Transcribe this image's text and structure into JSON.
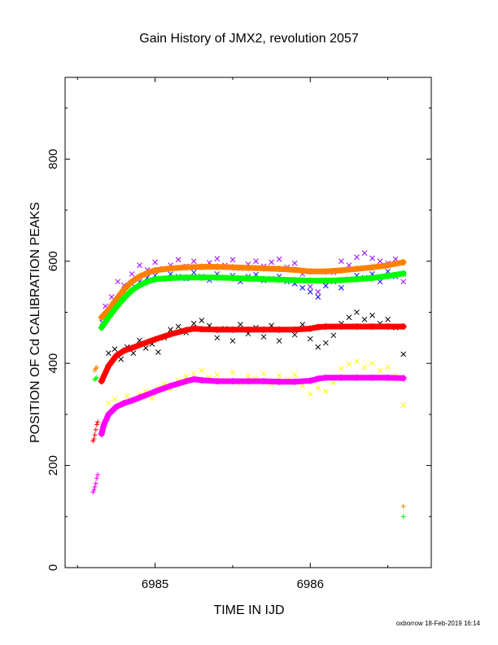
{
  "chart_data": {
    "type": "scatter",
    "title": "Gain History of JMX2, revolution 2057",
    "xlabel": "TIME IN IJD",
    "ylabel": "POSITION OF Cd CALIBRATION PEAKS",
    "xlim": [
      6984.42,
      6986.78
    ],
    "ylim": [
      0,
      960
    ],
    "xticks": [
      6985,
      6986
    ],
    "yticks": [
      0,
      200,
      400,
      600,
      800
    ],
    "grid": false,
    "legend": "none",
    "footer": "oxborrow 18-Feb-2019 16:14",
    "series": [
      {
        "color": "#ff8000",
        "marker": "+",
        "style": "smooth",
        "x": [
          6984.655,
          6984.7,
          6984.75,
          6984.8,
          6984.85,
          6984.9,
          6984.95,
          6985.0,
          6985.1,
          6985.2,
          6985.3,
          6985.4,
          6985.5,
          6985.6,
          6985.7,
          6985.8,
          6985.9,
          6986.0,
          6986.1,
          6986.2,
          6986.3,
          6986.4,
          6986.5,
          6986.6
        ],
        "values": [
          490,
          505,
          525,
          545,
          560,
          570,
          577,
          582,
          586,
          588,
          589,
          589,
          588,
          587,
          586,
          585,
          583,
          580,
          580,
          582,
          585,
          588,
          592,
          598
        ]
      },
      {
        "color": "#00ff00",
        "marker": "+",
        "style": "smooth",
        "x": [
          6984.655,
          6984.7,
          6984.75,
          6984.8,
          6984.85,
          6984.9,
          6984.95,
          6985.0,
          6985.1,
          6985.2,
          6985.3,
          6985.4,
          6985.5,
          6985.6,
          6985.7,
          6985.8,
          6985.9,
          6986.0,
          6986.1,
          6986.2,
          6986.3,
          6986.4,
          6986.5,
          6986.6
        ],
        "values": [
          470,
          490,
          510,
          528,
          543,
          553,
          560,
          565,
          567,
          568,
          568,
          568,
          567,
          566,
          565,
          564,
          563,
          562,
          562,
          563,
          565,
          567,
          571,
          576
        ]
      },
      {
        "color": "#ff0000",
        "marker": "+",
        "style": "smooth",
        "x": [
          6984.655,
          6984.7,
          6984.75,
          6984.8,
          6984.85,
          6984.9,
          6985.0,
          6985.1,
          6985.2,
          6985.25,
          6985.3,
          6985.4,
          6985.5,
          6985.6,
          6985.7,
          6985.8,
          6985.9,
          6986.0,
          6986.05,
          6986.1,
          6986.2,
          6986.3,
          6986.4,
          6986.5,
          6986.6
        ],
        "values": [
          365,
          395,
          415,
          425,
          430,
          436,
          447,
          457,
          465,
          468,
          467,
          466,
          466,
          466,
          466,
          466,
          466,
          468,
          471,
          472,
          472,
          472,
          472,
          472,
          472
        ]
      },
      {
        "color": "#ff00ff",
        "marker": "+",
        "style": "smooth",
        "x": [
          6984.655,
          6984.67,
          6984.7,
          6984.75,
          6984.8,
          6984.85,
          6984.9,
          6985.0,
          6985.1,
          6985.2,
          6985.25,
          6985.3,
          6985.4,
          6985.5,
          6985.6,
          6985.7,
          6985.8,
          6985.9,
          6986.0,
          6986.05,
          6986.1,
          6986.2,
          6986.3,
          6986.4,
          6986.5,
          6986.6
        ],
        "values": [
          262,
          280,
          300,
          315,
          322,
          327,
          333,
          345,
          356,
          365,
          369,
          367,
          365,
          365,
          365,
          365,
          364,
          364,
          366,
          370,
          372,
          372,
          372,
          372,
          372,
          371
        ]
      },
      {
        "color": "#a000ff",
        "marker": "x",
        "style": "scatter",
        "x": [
          6984.68,
          6984.72,
          6984.76,
          6984.8,
          6984.85,
          6984.9,
          6984.95,
          6985.0,
          6985.05,
          6985.1,
          6985.15,
          6985.2,
          6985.25,
          6985.3,
          6985.35,
          6985.4,
          6985.45,
          6985.5,
          6985.55,
          6985.6,
          6985.65,
          6985.7,
          6985.75,
          6985.8,
          6985.85,
          6985.9,
          6985.95,
          6986.0,
          6986.05,
          6986.1,
          6986.15,
          6986.2,
          6986.25,
          6986.3,
          6986.35,
          6986.4,
          6986.45,
          6986.5,
          6986.55,
          6986.6
        ],
        "values": [
          512,
          530,
          560,
          553,
          575,
          592,
          583,
          598,
          585,
          592,
          603,
          590,
          600,
          588,
          597,
          605,
          592,
          603,
          586,
          594,
          600,
          590,
          598,
          604,
          588,
          596,
          575,
          550,
          540,
          560,
          578,
          600,
          592,
          608,
          616,
          606,
          600,
          596,
          604,
          560
        ]
      },
      {
        "color": "#0000ff",
        "marker": "x",
        "style": "scatter",
        "x": [
          6984.66,
          6984.7,
          6984.75,
          6984.8,
          6984.85,
          6984.9,
          6984.95,
          6985.0,
          6985.05,
          6985.1,
          6985.15,
          6985.2,
          6985.25,
          6985.3,
          6985.35,
          6985.4,
          6985.45,
          6985.5,
          6985.55,
          6985.6,
          6985.65,
          6985.7,
          6985.75,
          6985.8,
          6985.85,
          6985.9,
          6985.95,
          6986.0,
          6986.05,
          6986.1,
          6986.15,
          6986.2,
          6986.25,
          6986.3,
          6986.35,
          6986.4,
          6986.45,
          6986.5,
          6986.55,
          6986.6
        ],
        "values": [
          480,
          500,
          520,
          540,
          556,
          560,
          568,
          572,
          565,
          575,
          570,
          566,
          578,
          570,
          563,
          575,
          568,
          572,
          560,
          570,
          574,
          562,
          566,
          570,
          560,
          556,
          548,
          540,
          530,
          552,
          560,
          548,
          565,
          572,
          568,
          575,
          560,
          580,
          570,
          575
        ]
      },
      {
        "color": "#000000",
        "marker": "x",
        "style": "scatter",
        "x": [
          6984.7,
          6984.74,
          6984.78,
          6984.82,
          6984.86,
          6984.9,
          6984.94,
          6984.98,
          6985.02,
          6985.06,
          6985.1,
          6985.15,
          6985.2,
          6985.25,
          6985.3,
          6985.35,
          6985.4,
          6985.45,
          6985.5,
          6985.55,
          6985.6,
          6985.65,
          6985.7,
          6985.75,
          6985.8,
          6985.85,
          6985.9,
          6985.95,
          6986.0,
          6986.05,
          6986.1,
          6986.15,
          6986.2,
          6986.25,
          6986.3,
          6986.35,
          6986.4,
          6986.45,
          6986.5,
          6986.55,
          6986.6
        ],
        "values": [
          420,
          428,
          408,
          432,
          420,
          445,
          430,
          438,
          422,
          450,
          466,
          472,
          460,
          478,
          484,
          474,
          450,
          468,
          444,
          476,
          458,
          470,
          452,
          474,
          444,
          466,
          456,
          476,
          448,
          432,
          440,
          455,
          478,
          490,
          500,
          486,
          494,
          478,
          486,
          470,
          418
        ]
      },
      {
        "color": "#ffff00",
        "marker": "x",
        "style": "scatter",
        "x": [
          6984.7,
          6984.74,
          6984.78,
          6984.82,
          6984.86,
          6984.9,
          6984.94,
          6984.98,
          6985.02,
          6985.06,
          6985.1,
          6985.15,
          6985.2,
          6985.25,
          6985.3,
          6985.35,
          6985.4,
          6985.45,
          6985.5,
          6985.55,
          6985.6,
          6985.65,
          6985.7,
          6985.75,
          6985.8,
          6985.85,
          6985.9,
          6985.95,
          6986.0,
          6986.05,
          6986.1,
          6986.15,
          6986.2,
          6986.25,
          6986.3,
          6986.35,
          6986.4,
          6986.45,
          6986.5,
          6986.55,
          6986.6
        ],
        "values": [
          322,
          330,
          318,
          336,
          326,
          340,
          345,
          332,
          352,
          360,
          350,
          366,
          375,
          380,
          386,
          372,
          378,
          368,
          382,
          362,
          376,
          370,
          380,
          360,
          376,
          368,
          378,
          356,
          340,
          352,
          345,
          362,
          390,
          398,
          404,
          392,
          400,
          386,
          392,
          376,
          318
        ]
      },
      {
        "color": "#ff8000",
        "marker": "+",
        "style": "scatter",
        "x": [
          6984.61,
          6984.617,
          6984.624,
          6986.6
        ],
        "values": [
          386,
          390,
          392,
          120
        ]
      },
      {
        "color": "#00ff00",
        "marker": "+",
        "style": "scatter",
        "x": [
          6984.61,
          6984.617,
          6984.624,
          6986.6
        ],
        "values": [
          368,
          370,
          372,
          100
        ]
      },
      {
        "color": "#ff0000",
        "marker": "+",
        "style": "scatter",
        "x": [
          6984.6,
          6984.606,
          6984.612,
          6984.618,
          6984.624,
          6984.63
        ],
        "values": [
          248,
          252,
          260,
          270,
          280,
          285
        ]
      },
      {
        "color": "#ff00ff",
        "marker": "+",
        "style": "scatter",
        "x": [
          6984.6,
          6984.606,
          6984.612,
          6984.618,
          6984.624,
          6984.63
        ],
        "values": [
          148,
          152,
          158,
          165,
          175,
          182
        ]
      }
    ]
  }
}
